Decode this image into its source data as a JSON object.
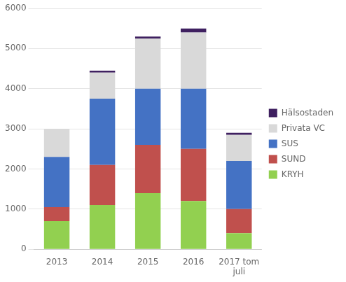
{
  "chart_data": {
    "type": "bar",
    "stacked": true,
    "categories": [
      "2013",
      "2014",
      "2015",
      "2016",
      "2017 tom\njuli"
    ],
    "series": [
      {
        "name": "KRYH",
        "color": "#92d050",
        "values": [
          700,
          1100,
          1400,
          1200,
          400
        ]
      },
      {
        "name": "SUND",
        "color": "#c0504d",
        "values": [
          350,
          1000,
          1200,
          1300,
          600
        ]
      },
      {
        "name": "SUS",
        "color": "#4472c4",
        "values": [
          1250,
          1650,
          1400,
          1500,
          1200
        ]
      },
      {
        "name": "Privata VC",
        "color": "#d9d9d9",
        "values": [
          700,
          650,
          1250,
          1400,
          650
        ]
      },
      {
        "name": "Hälsostaden",
        "color": "#3f2060",
        "values": [
          0,
          50,
          50,
          100,
          50
        ]
      }
    ],
    "ylim": [
      0,
      6000
    ],
    "yticks": [
      0,
      1000,
      2000,
      3000,
      4000,
      5000,
      6000
    ],
    "grid": true,
    "legend": "right"
  }
}
